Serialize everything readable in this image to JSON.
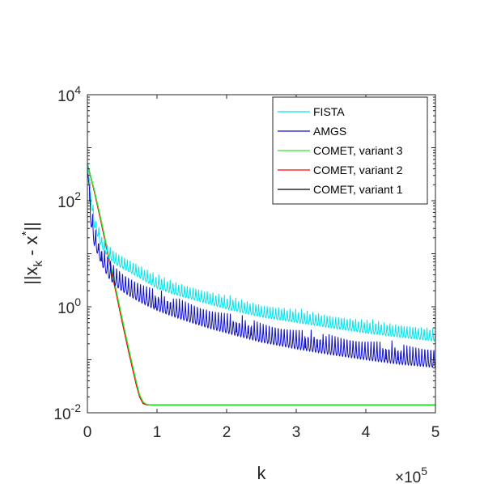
{
  "chart_data": {
    "type": "line",
    "xlabel": "k",
    "ylabel": "||x_k - x^*||",
    "x_multiplier": "×10^5",
    "xlim": [
      0,
      500000
    ],
    "ylim": [
      0.01,
      10000
    ],
    "yscale": "log",
    "xticks": [
      0,
      100000,
      200000,
      300000,
      400000,
      500000
    ],
    "xtick_labels": [
      "0",
      "1",
      "2",
      "3",
      "4",
      "5"
    ],
    "yticks": [
      0.01,
      1,
      100,
      10000
    ],
    "ytick_labels": [
      {
        "base": "10",
        "exp": "-2"
      },
      {
        "base": "10",
        "exp": "0"
      },
      {
        "base": "10",
        "exp": "2"
      },
      {
        "base": "10",
        "exp": "4"
      }
    ],
    "grid": false,
    "legend_position": "top-right",
    "series": [
      {
        "name": "FISTA",
        "color": "#00e5ee",
        "x": [
          0,
          10000,
          20000,
          30000,
          40000,
          50000,
          60000,
          80000,
          100000,
          125000,
          150000,
          175000,
          200000,
          250000,
          300000,
          350000,
          400000,
          450000,
          500000
        ],
        "y": [
          500,
          60,
          25,
          16,
          12,
          10,
          8.5,
          6,
          4.2,
          3.2,
          2.6,
          2.1,
          1.7,
          1.2,
          0.95,
          0.75,
          0.6,
          0.5,
          0.42
        ],
        "oscillation": 0.55
      },
      {
        "name": "AMGS",
        "color": "#1010c8",
        "x": [
          0,
          5000,
          10000,
          20000,
          30000,
          40000,
          50000,
          60000,
          80000,
          100000,
          125000,
          150000,
          175000,
          200000,
          250000,
          300000,
          350000,
          400000,
          450000,
          500000
        ],
        "y": [
          500,
          100,
          40,
          18,
          10,
          7,
          5.5,
          4.5,
          3.2,
          2.4,
          1.8,
          1.4,
          1.1,
          0.9,
          0.6,
          0.45,
          0.35,
          0.28,
          0.23,
          0.2
        ],
        "oscillation": 0.9
      },
      {
        "name": "COMET, variant 3",
        "color": "#2ee82e",
        "x": [
          0,
          10000,
          20000,
          30000,
          40000,
          50000,
          60000,
          70000,
          75000,
          80000,
          85000,
          90000,
          100000,
          200000,
          300000,
          400000,
          500000
        ],
        "y": [
          500,
          160,
          42,
          10,
          2.5,
          0.6,
          0.15,
          0.04,
          0.022,
          0.016,
          0.0145,
          0.014,
          0.014,
          0.014,
          0.014,
          0.014,
          0.014
        ]
      },
      {
        "name": "COMET, variant 2",
        "color": "#ff0000",
        "x": [
          0,
          10000,
          20000,
          30000,
          40000,
          50000,
          60000,
          70000,
          75000,
          80000,
          85000,
          90000,
          100000,
          200000,
          300000,
          400000,
          500000
        ],
        "y": [
          500,
          150,
          38,
          9,
          2.2,
          0.52,
          0.13,
          0.035,
          0.02,
          0.015,
          0.0142,
          0.014,
          0.014,
          0.014,
          0.014,
          0.014,
          0.014
        ]
      },
      {
        "name": "COMET, variant 1",
        "color": "#000000",
        "x": [
          0,
          10000,
          20000,
          30000,
          40000,
          50000,
          60000,
          70000,
          75000,
          80000,
          85000,
          90000,
          100000,
          200000,
          300000,
          400000,
          500000
        ],
        "y": [
          500,
          150,
          38,
          9,
          2.2,
          0.52,
          0.13,
          0.035,
          0.02,
          0.015,
          0.0142,
          0.014,
          0.014,
          0.014,
          0.014,
          0.014,
          0.014
        ]
      }
    ]
  }
}
